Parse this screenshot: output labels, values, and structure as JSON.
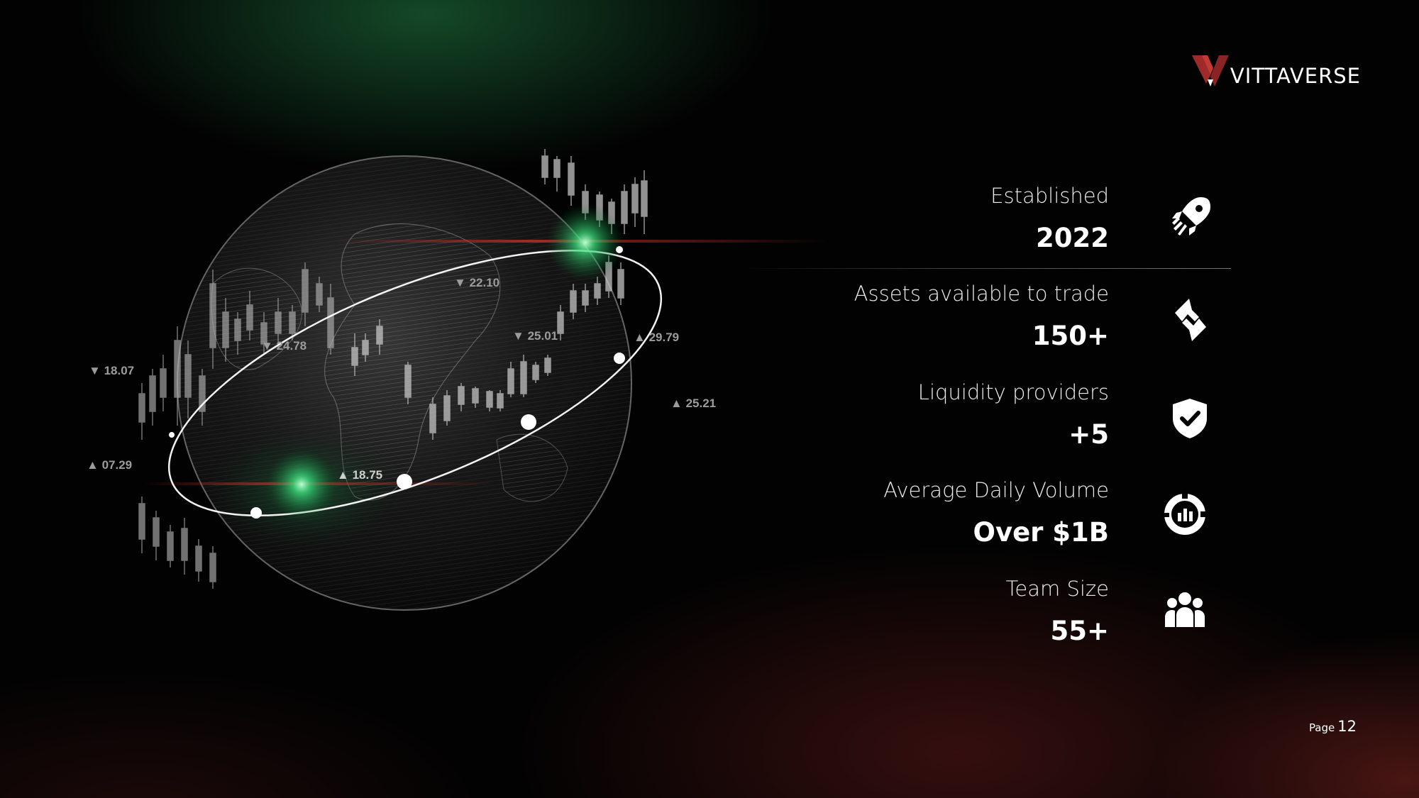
{
  "brand": {
    "name": "VITTAVERSE"
  },
  "chart_overlay": {
    "labels": [
      "22.10",
      "24.78",
      "25.01",
      "29.79",
      "18.07",
      "25.21",
      "07.29",
      "18.75"
    ]
  },
  "stats": [
    {
      "label": "Established",
      "value": "2022",
      "icon": "rocket-icon"
    },
    {
      "label": "Assets available to trade",
      "value": "150+",
      "icon": "exchange-arrows-icon"
    },
    {
      "label": "Liquidity providers",
      "value": "+5",
      "icon": "shield-check-icon"
    },
    {
      "label": "Average Daily Volume",
      "value": "Over $1B",
      "icon": "analytics-donut-icon"
    },
    {
      "label": "Team Size",
      "value": "55+",
      "icon": "team-icon"
    }
  ],
  "footer": {
    "page_label": "Page",
    "page_number": "12"
  },
  "colors": {
    "accent_red": "#b32a2a",
    "accent_green": "#2fbf6a",
    "text": "#ffffff",
    "background": "#020202"
  }
}
